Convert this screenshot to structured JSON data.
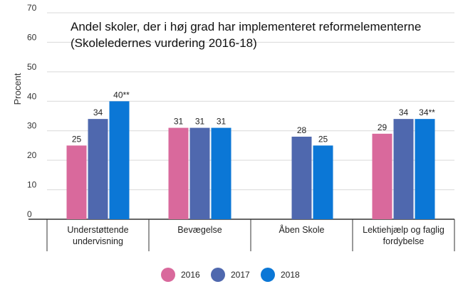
{
  "chart_data": {
    "type": "bar",
    "title": "Andel skoler, der i høj grad har implementeret reformelementerne",
    "subtitle": "(Skoleledernes vurdering 2016-18)",
    "ylabel": "Procent",
    "xlabel": "",
    "ylim": [
      0,
      70
    ],
    "yticks": [
      0,
      10,
      20,
      30,
      40,
      50,
      60,
      70
    ],
    "grid": true,
    "legend_position": "bottom",
    "categories": [
      [
        "Understøttende",
        "undervisning"
      ],
      [
        "Bevægelse"
      ],
      [
        "Åben Skole"
      ],
      [
        "Lektiehjælp og faglig",
        "fordybelse"
      ]
    ],
    "series": [
      {
        "name": "2016",
        "color": "#d9699c",
        "values": [
          25,
          31,
          null,
          29
        ],
        "labels": [
          "25",
          "31",
          "",
          "29"
        ]
      },
      {
        "name": "2017",
        "color": "#4f68ae",
        "values": [
          34,
          31,
          28,
          34
        ],
        "labels": [
          "34",
          "31",
          "28",
          "34"
        ]
      },
      {
        "name": "2018",
        "color": "#0b77d6",
        "values": [
          40,
          31,
          25,
          34
        ],
        "labels": [
          "40**",
          "31",
          "25",
          "34**"
        ]
      }
    ]
  }
}
